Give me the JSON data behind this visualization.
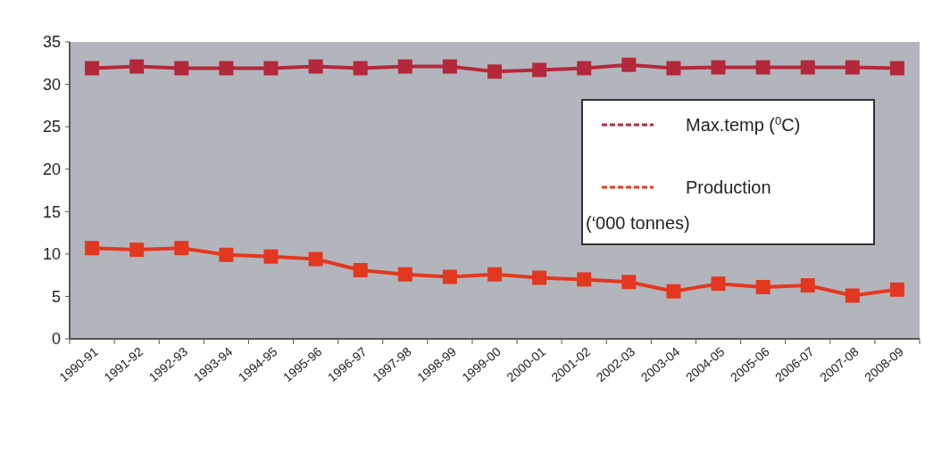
{
  "chart_data": {
    "type": "line",
    "categories": [
      "1990-91",
      "1991-92",
      "1992-93",
      "1993-94",
      "1994-95",
      "1995-96",
      "1996-97",
      "1997-98",
      "1998-99",
      "1999-00",
      "2000-01",
      "2001-02",
      "2002-03",
      "2003-04",
      "2004-05",
      "2005-06",
      "2006-07",
      "2007-08",
      "2008-09"
    ],
    "series": [
      {
        "name": "Max.temp ($^{0}$C)",
        "color": "#b4283c",
        "values": [
          31.9,
          32.1,
          31.9,
          31.9,
          31.9,
          32.1,
          31.9,
          32.1,
          32.1,
          31.5,
          31.7,
          31.9,
          32.3,
          31.9,
          32.0,
          32.0,
          32.0,
          32.0,
          31.9
        ]
      },
      {
        "name": "Production (‘000 tonnes)",
        "color": "#e2381f",
        "values": [
          10.7,
          10.5,
          10.7,
          9.9,
          9.7,
          9.4,
          8.1,
          7.6,
          7.3,
          7.6,
          7.2,
          7.0,
          6.7,
          5.6,
          6.5,
          6.1,
          6.3,
          5.1,
          5.8
        ]
      }
    ],
    "ylim": [
      0,
      35
    ],
    "yticks": [
      0,
      5,
      10,
      15,
      20,
      25,
      30,
      35
    ],
    "grid": false,
    "legend": "top right",
    "marker": "square",
    "line_style": "solid"
  }
}
